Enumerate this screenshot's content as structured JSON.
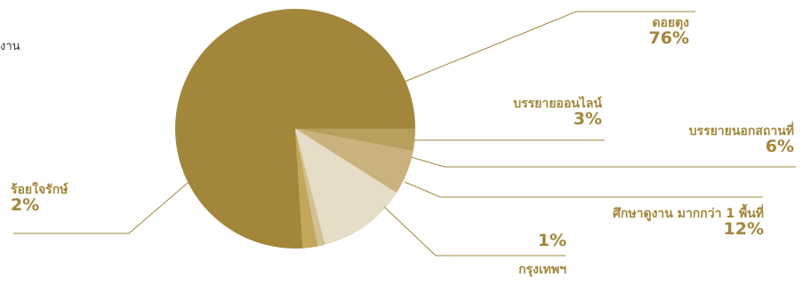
{
  "cut_text": "งาน",
  "chart_data": {
    "type": "pie",
    "slices": [
      {
        "name": "ดอยตุง",
        "value": 76,
        "label": "76%",
        "color": "#a2863a"
      },
      {
        "name": "บรรยายออนไลน์",
        "value": 3,
        "label": "3%",
        "color": "#b8a05c"
      },
      {
        "name": "บรรยายนอกสถานที่",
        "value": 6,
        "label": "6%",
        "color": "#c9b27d"
      },
      {
        "name": "ศึกษาดูงาน มากกว่า 1 พื้นที่",
        "value": 12,
        "label": "12%",
        "color": "#e6ddc7"
      },
      {
        "name": "กรุงเทพฯ",
        "value": 1,
        "label": "1%",
        "color": "#d1c091"
      },
      {
        "name": "ร้อยใจรักษ์",
        "value": 2,
        "label": "2%",
        "color": "#c2a659"
      }
    ]
  }
}
